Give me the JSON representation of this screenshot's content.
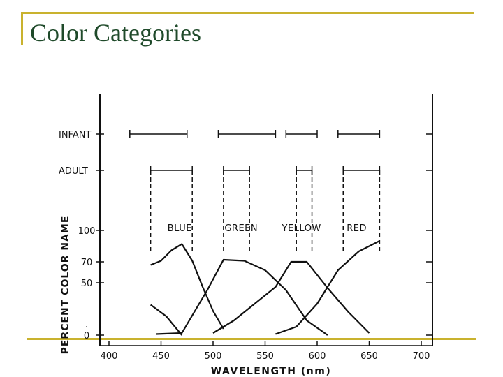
{
  "slide": {
    "title": "Color Categories"
  },
  "colors": {
    "frame": "#c9b22e",
    "title": "#1f4a2a",
    "ink": "#111111"
  },
  "chart_data": {
    "type": "line",
    "title": "",
    "xlabel": "WAVELENGTH (nm)",
    "ylabel": "PERCENT COLOR NAME",
    "xlim": [
      400,
      700
    ],
    "ylim": [
      0,
      100
    ],
    "x_ticks": [
      400,
      450,
      500,
      550,
      600,
      650,
      700
    ],
    "y_ticks": [
      0,
      50,
      70,
      100
    ],
    "y_extra_labels": [
      "."
    ],
    "rows": [
      {
        "label": "INFANT",
        "ranges": [
          [
            420,
            475
          ],
          [
            505,
            560
          ],
          [
            570,
            600
          ],
          [
            620,
            660
          ]
        ]
      },
      {
        "label": "ADULT",
        "ranges": [
          [
            440,
            480
          ],
          [
            510,
            535
          ],
          [
            580,
            595
          ],
          [
            625,
            660
          ]
        ]
      }
    ],
    "series": [
      {
        "name": "BLUE",
        "label_x": 468,
        "x": [
          440,
          450,
          460,
          470,
          480,
          490,
          500,
          510
        ],
        "y": [
          67,
          71,
          81,
          87,
          71,
          46,
          23,
          6
        ]
      },
      {
        "name": "GREEN",
        "label_x": 527,
        "x": [
          445,
          470,
          495,
          510,
          530,
          550,
          570,
          590,
          610
        ],
        "y": [
          1,
          2,
          44,
          72,
          71,
          62,
          43,
          14,
          0
        ]
      },
      {
        "name": "YELLOW",
        "label_x": 585,
        "x": [
          500,
          520,
          540,
          560,
          575,
          590,
          610,
          630,
          650
        ],
        "y": [
          2,
          14,
          30,
          46,
          70,
          70,
          45,
          22,
          2
        ]
      },
      {
        "name": "RED",
        "label_x": 638,
        "x": [
          560,
          580,
          600,
          620,
          640,
          660
        ],
        "y": [
          1,
          8,
          30,
          62,
          80,
          90
        ]
      },
      {
        "name": "",
        "x": [
          440,
          455,
          470
        ],
        "y": [
          29,
          18,
          0
        ]
      }
    ]
  }
}
